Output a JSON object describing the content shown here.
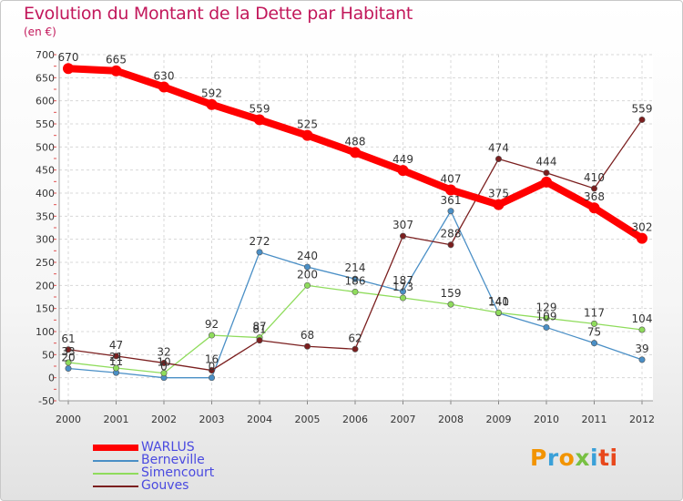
{
  "header": {
    "title": "Evolution du Montant de la Dette par Habitant",
    "unit": "(en €)"
  },
  "logo": {
    "text": "Proxiti",
    "colors": [
      "#f29400",
      "#3aa0d8",
      "#f29400",
      "#78c043",
      "#3aa0d8",
      "#e8481c",
      "#e8481c"
    ]
  },
  "chart_data": {
    "type": "line",
    "x": [
      2000,
      2001,
      2002,
      2003,
      2004,
      2005,
      2006,
      2007,
      2008,
      2009,
      2010,
      2011,
      2012
    ],
    "ylim": [
      -50,
      700
    ],
    "yticks": [
      -50,
      0,
      50,
      100,
      150,
      200,
      250,
      300,
      350,
      400,
      450,
      500,
      550,
      600,
      650,
      700
    ],
    "grid": true,
    "legend_position": "bottom-left",
    "series": [
      {
        "name": "WARLUS",
        "color": "#ff0000",
        "values": [
          670,
          665,
          630,
          592,
          559,
          525,
          488,
          449,
          407,
          375,
          424,
          368,
          302
        ],
        "labels": [
          "670",
          "665",
          "630",
          "592",
          "559",
          "525",
          "488",
          "449",
          "407",
          "375",
          "",
          "368",
          "302"
        ]
      },
      {
        "name": "Berneville",
        "color": "#4a8fc6",
        "values": [
          20,
          11,
          0,
          0,
          272,
          240,
          214,
          187,
          361,
          140,
          109,
          75,
          39
        ],
        "labels": [
          "20",
          "11",
          "0",
          "0",
          "272",
          "240",
          "214",
          "187",
          "361",
          "140",
          "109",
          "75",
          "39"
        ]
      },
      {
        "name": "Simencourt",
        "color": "#8fdc5c",
        "values": [
          33,
          21,
          10,
          92,
          87,
          200,
          186,
          173,
          159,
          141,
          129,
          117,
          104
        ],
        "labels": [
          "33",
          "21",
          "10",
          "92",
          "87",
          "200",
          "186",
          "173",
          "159",
          "141",
          "129",
          "117",
          "104"
        ]
      },
      {
        "name": "Gouves",
        "color": "#7b1f1f",
        "values": [
          61,
          47,
          32,
          16,
          81,
          68,
          62,
          307,
          288,
          474,
          444,
          410,
          559
        ],
        "labels": [
          "61",
          "47",
          "32",
          "16",
          "81",
          "68",
          "62",
          "307",
          "288",
          "474",
          "444",
          "410",
          "559"
        ]
      }
    ]
  }
}
